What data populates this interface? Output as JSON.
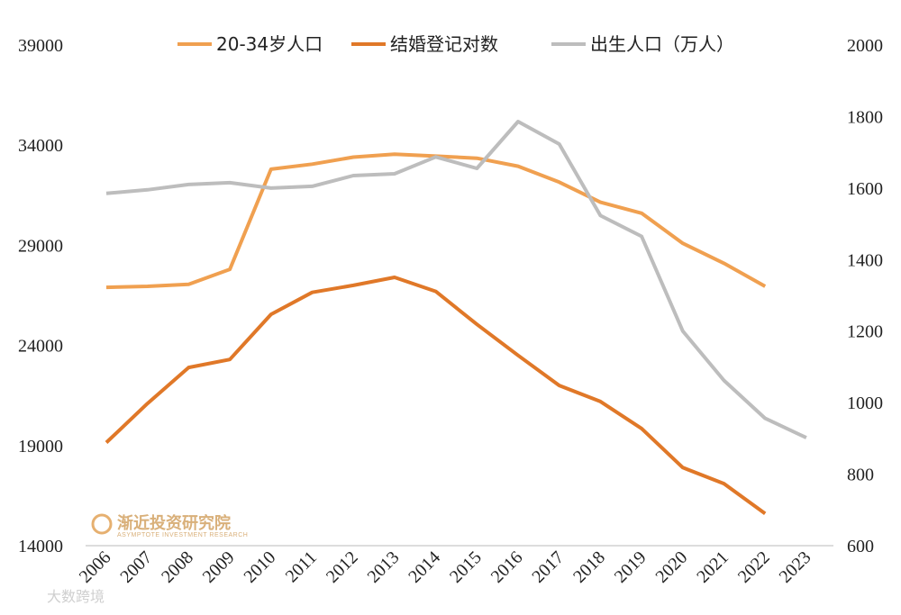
{
  "chart_data": {
    "type": "line",
    "x": [
      "2006",
      "2007",
      "2008",
      "2009",
      "2010",
      "2011",
      "2012",
      "2013",
      "2014",
      "2015",
      "2016",
      "2017",
      "2018",
      "2019",
      "2020",
      "2021",
      "2022",
      "2023"
    ],
    "left_axis": {
      "ylim": [
        14000,
        39000
      ],
      "ticks": [
        "14000",
        "19000",
        "24000",
        "29000",
        "34000",
        "39000"
      ]
    },
    "right_axis": {
      "ylim": [
        600,
        2000
      ],
      "ticks": [
        "600",
        "800",
        "1000",
        "1200",
        "1400",
        "1600",
        "1800",
        "2000"
      ]
    },
    "legend_position": "top",
    "series": [
      {
        "name": "20-34岁人口",
        "axis": "left",
        "color": "#f0a050",
        "values": [
          26900,
          26950,
          27050,
          27800,
          32800,
          33050,
          33400,
          33550,
          33450,
          33350,
          32950,
          32150,
          31150,
          30600,
          29100,
          28100,
          26950,
          null
        ]
      },
      {
        "name": "结婚登记对数",
        "axis": "left",
        "color": "#e07828",
        "values": [
          19150,
          21100,
          22900,
          23300,
          25550,
          26650,
          27000,
          27400,
          26700,
          25050,
          23500,
          22000,
          21200,
          19850,
          17900,
          17100,
          15600,
          null
        ]
      },
      {
        "name": "出生人口（万人）",
        "axis": "right",
        "color": "#bdbdbd",
        "values": [
          1585,
          1595,
          1610,
          1615,
          1600,
          1605,
          1635,
          1640,
          1687,
          1655,
          1786,
          1723,
          1523,
          1465,
          1200,
          1062,
          956,
          902
        ]
      }
    ]
  },
  "watermark": {
    "cn": "渐近投资研究院",
    "en": "ASYMPTOTE INVESTMENT RESEARCH",
    "corner": "大数跨境"
  }
}
